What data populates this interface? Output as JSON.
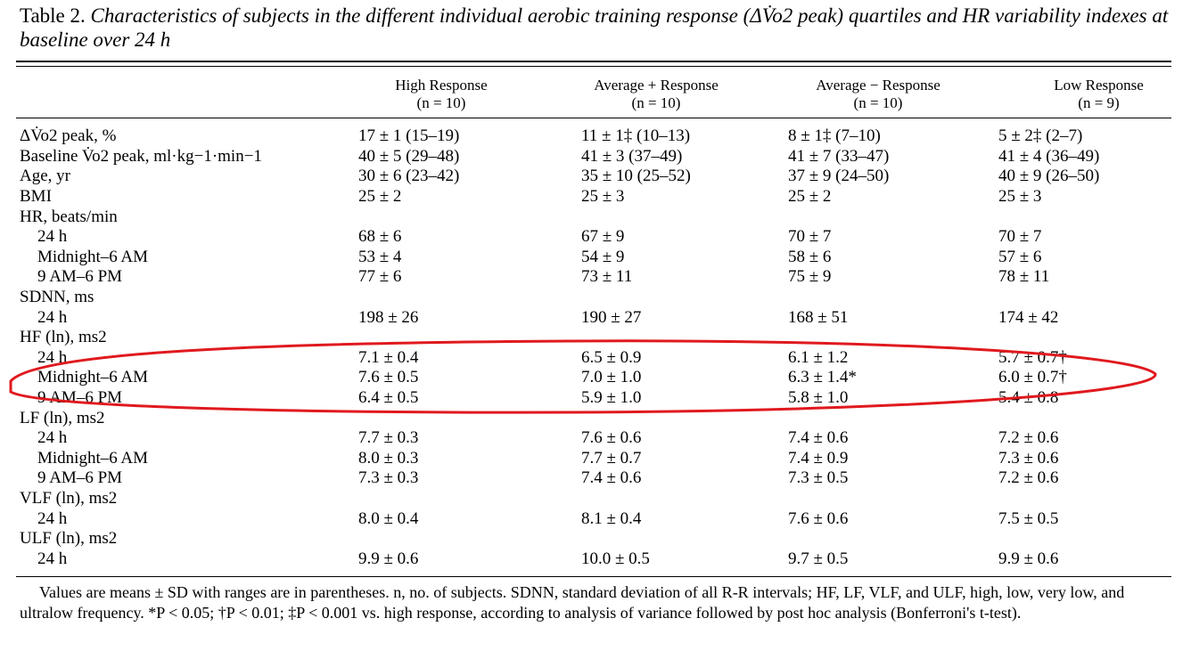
{
  "caption": {
    "label": "Table 2.",
    "text": "Characteristics of subjects in the different individual aerobic training response (ΔV̇o2 peak) quartiles and HR variability indexes at baseline over 24 h"
  },
  "columns": [
    {
      "name": "High Response",
      "n": "(n = 10)"
    },
    {
      "name": "Average + Response",
      "n": "(n = 10)"
    },
    {
      "name": "Average − Response",
      "n": "(n = 10)"
    },
    {
      "name": "Low Response",
      "n": "(n = 9)"
    }
  ],
  "rows": [
    {
      "label": "ΔV̇o2 peak, %",
      "values": [
        "17 ± 1 (15–19)",
        "11 ± 1‡ (10–13)",
        "8 ± 1‡ (7–10)",
        "5 ± 2‡ (2–7)"
      ]
    },
    {
      "label": "Baseline V̇o2 peak, ml·kg−1·min−1",
      "values": [
        "40 ± 5 (29–48)",
        "41 ± 3  (37–49)",
        "41 ± 7  (33–47)",
        "41 ± 4  (36–49)"
      ]
    },
    {
      "label": "Age, yr",
      "values": [
        "30 ± 6 (23–42)",
        "35 ± 10 (25–52)",
        "37 ± 9  (24–50)",
        "40 ± 9  (26–50)"
      ]
    },
    {
      "label": "BMI",
      "values": [
        "25 ± 2",
        "25 ± 3",
        "25 ± 2",
        "25 ± 3"
      ]
    },
    {
      "label": "HR, beats/min",
      "values": [
        "",
        "",
        "",
        ""
      ]
    },
    {
      "label": "24 h",
      "indent": true,
      "values": [
        "68 ± 6",
        "67 ± 9",
        "70 ± 7",
        "70 ± 7"
      ]
    },
    {
      "label": "Midnight–6 AM",
      "indent": true,
      "values": [
        "53 ± 4",
        "54 ± 9",
        "58 ± 6",
        "57 ± 6"
      ]
    },
    {
      "label": "9 AM–6 PM",
      "indent": true,
      "values": [
        "77 ± 6",
        "73 ± 11",
        "75 ± 9",
        "78 ± 11"
      ]
    },
    {
      "label": "SDNN, ms",
      "values": [
        "",
        "",
        "",
        ""
      ]
    },
    {
      "label": "24 h",
      "indent": true,
      "values": [
        "198 ± 26",
        "190 ± 27",
        "168 ± 51",
        "174 ± 42"
      ]
    },
    {
      "label": "HF (ln), ms2",
      "values": [
        "",
        "",
        "",
        ""
      ]
    },
    {
      "label": "24 h",
      "indent": true,
      "values": [
        "7.1 ± 0.4",
        "6.5 ± 0.9",
        "6.1 ± 1.2",
        "5.7 ± 0.7†"
      ]
    },
    {
      "label": "Midnight–6 AM",
      "indent": true,
      "values": [
        "7.6 ± 0.5",
        "7.0 ± 1.0",
        "6.3 ± 1.4*",
        "6.0 ± 0.7†"
      ]
    },
    {
      "label": "9 AM–6 PM",
      "indent": true,
      "values": [
        "6.4 ± 0.5",
        "5.9 ± 1.0",
        "5.8 ± 1.0",
        "5.4 ± 0.8"
      ]
    },
    {
      "label": "LF (ln), ms2",
      "values": [
        "",
        "",
        "",
        ""
      ]
    },
    {
      "label": "24 h",
      "indent": true,
      "values": [
        "7.7 ± 0.3",
        "7.6 ± 0.6",
        "7.4 ± 0.6",
        "7.2 ± 0.6"
      ]
    },
    {
      "label": "Midnight–6 AM",
      "indent": true,
      "values": [
        "8.0 ± 0.3",
        "7.7 ± 0.7",
        "7.4 ± 0.9",
        "7.3 ± 0.6"
      ]
    },
    {
      "label": "9 AM–6 PM",
      "indent": true,
      "values": [
        "7.3 ± 0.3",
        "7.4 ± 0.6",
        "7.3 ± 0.5",
        "7.2 ± 0.6"
      ]
    },
    {
      "label": "VLF (ln), ms2",
      "values": [
        "",
        "",
        "",
        ""
      ]
    },
    {
      "label": "24 h",
      "indent": true,
      "values": [
        "8.0 ± 0.4",
        "8.1 ± 0.4",
        "7.6 ± 0.6",
        "7.5 ± 0.5"
      ]
    },
    {
      "label": "ULF (ln), ms2",
      "values": [
        "",
        "",
        "",
        ""
      ]
    },
    {
      "label": "24 h",
      "indent": true,
      "values": [
        "9.9 ± 0.6",
        "10.0 ± 0.5",
        "9.7 ± 0.5",
        "9.9 ± 0.6"
      ]
    }
  ],
  "footnote": "Values are means ± SD with ranges are in parentheses. n, no. of subjects. SDNN, standard deviation of all R-R intervals; HF, LF, VLF, and ULF, high, low, very low, and ultralow frequency. *P < 0.05; †P < 0.01; ‡P < 0.001 vs. high response, according to analysis of variance followed by post hoc analysis (Bonferroni's t-test).",
  "annotation": {
    "color": "#e0191e",
    "shape": "hand-drawn ellipse around HF (ln) rows"
  }
}
